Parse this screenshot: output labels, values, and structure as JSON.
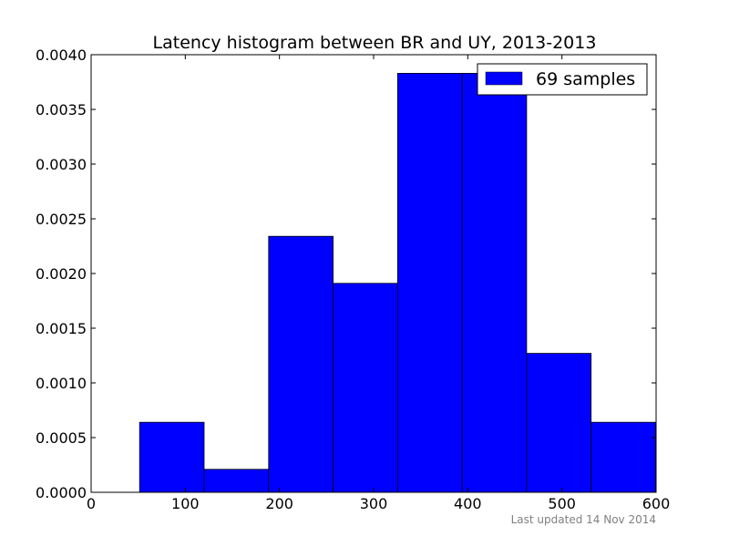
{
  "chart_data": {
    "type": "bar",
    "title": "Latency histogram between BR and UY, 2013-2013",
    "xlabel": "",
    "ylabel": "",
    "xlim": [
      0,
      600
    ],
    "ylim": [
      0,
      0.004
    ],
    "x_ticks": [
      {
        "value": 0,
        "label": "0"
      },
      {
        "value": 100,
        "label": "100"
      },
      {
        "value": 200,
        "label": "200"
      },
      {
        "value": 300,
        "label": "300"
      },
      {
        "value": 400,
        "label": "400"
      },
      {
        "value": 500,
        "label": "500"
      },
      {
        "value": 600,
        "label": "600"
      }
    ],
    "y_ticks": [
      {
        "value": 0,
        "label": "0.0000"
      },
      {
        "value": 0.0005,
        "label": "0.0005"
      },
      {
        "value": 0.001,
        "label": "0.0010"
      },
      {
        "value": 0.0015,
        "label": "0.0015"
      },
      {
        "value": 0.002,
        "label": "0.0020"
      },
      {
        "value": 0.0025,
        "label": "0.0025"
      },
      {
        "value": 0.003,
        "label": "0.0030"
      },
      {
        "value": 0.0035,
        "label": "0.0035"
      },
      {
        "value": 0.004,
        "label": "0.0040"
      }
    ],
    "grid": false,
    "legend_position": "top-right",
    "series": [
      {
        "name": "69 samples",
        "color": "#0000ff",
        "bins": [
          {
            "x0": 51.5,
            "x1": 120.0,
            "value": 0.00064
          },
          {
            "x0": 120.0,
            "x1": 188.5,
            "value": 0.00021
          },
          {
            "x0": 188.5,
            "x1": 257.0,
            "value": 0.00234
          },
          {
            "x0": 257.0,
            "x1": 325.5,
            "value": 0.00191
          },
          {
            "x0": 325.5,
            "x1": 394.0,
            "value": 0.00383
          },
          {
            "x0": 394.0,
            "x1": 462.5,
            "value": 0.00383
          },
          {
            "x0": 462.5,
            "x1": 531.0,
            "value": 0.00127
          },
          {
            "x0": 531.0,
            "x1": 599.5,
            "value": 0.00064
          }
        ]
      }
    ]
  },
  "footer": {
    "updated_text": "Last updated 14 Nov 2014"
  }
}
